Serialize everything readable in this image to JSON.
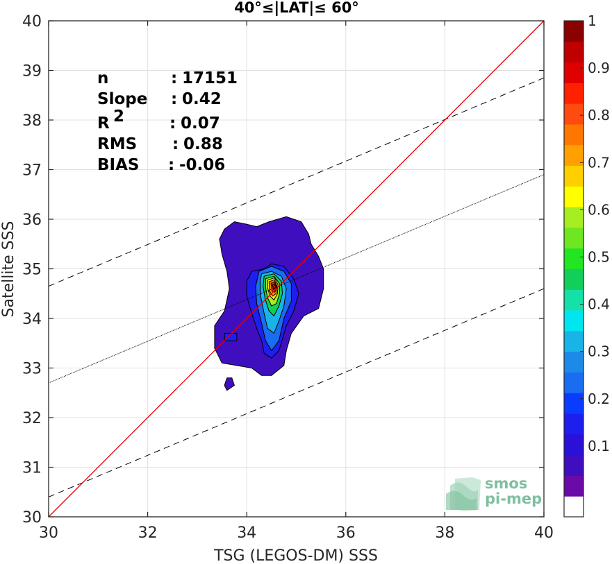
{
  "chart_data": {
    "type": "heatmap",
    "title": "40°≤|LAT|≤ 60°",
    "xlabel": "TSG (LEGOS-DM) SSS",
    "ylabel": "Satellite SSS",
    "xlim": [
      30,
      40
    ],
    "ylim": [
      30,
      40
    ],
    "xticks": [
      "30",
      "32",
      "34",
      "36",
      "38",
      "40"
    ],
    "yticks": [
      "30",
      "31",
      "32",
      "33",
      "34",
      "35",
      "36",
      "37",
      "38",
      "39",
      "40"
    ],
    "grid": true,
    "stats": [
      {
        "label": "n",
        "sep": ": ",
        "value": "17151"
      },
      {
        "label": "Slope",
        "sep": ": ",
        "value": "0.42"
      },
      {
        "label": "R",
        "sup": "2",
        "sep": ": ",
        "value": "0.07"
      },
      {
        "label": "RMS",
        "sep": ": ",
        "value": "0.88"
      },
      {
        "label": "BIAS",
        "sep": ": ",
        "value": "-0.06"
      }
    ],
    "lines": {
      "one_to_one": {
        "x": [
          30,
          40
        ],
        "y": [
          30,
          40
        ],
        "color": "#e00000"
      },
      "regression": {
        "slope": 0.42,
        "intercept": 20.1,
        "color": "#000000"
      },
      "upper_bound": {
        "slope": 0.42,
        "intercept": 22.05,
        "style": "dashed",
        "color": "#000000"
      },
      "lower_bound": {
        "slope": 0.42,
        "intercept": 17.8,
        "style": "dashed",
        "color": "#000000"
      }
    },
    "density_contours": [
      {
        "level": 0.05,
        "color": "#3f0fbf",
        "points": [
          [
            33.55,
            35.8
          ],
          [
            33.75,
            35.95
          ],
          [
            34.0,
            35.9
          ],
          [
            34.2,
            35.85
          ],
          [
            34.45,
            35.95
          ],
          [
            34.8,
            36.05
          ],
          [
            35.1,
            35.95
          ],
          [
            35.25,
            35.7
          ],
          [
            35.3,
            35.5
          ],
          [
            35.45,
            35.25
          ],
          [
            35.55,
            35.0
          ],
          [
            35.55,
            34.6
          ],
          [
            35.45,
            34.2
          ],
          [
            35.15,
            34.05
          ],
          [
            34.9,
            33.7
          ],
          [
            34.8,
            33.35
          ],
          [
            34.75,
            33.05
          ],
          [
            34.5,
            32.85
          ],
          [
            34.3,
            32.85
          ],
          [
            34.1,
            33.0
          ],
          [
            33.8,
            33.05
          ],
          [
            33.5,
            33.1
          ],
          [
            33.35,
            33.4
          ],
          [
            33.35,
            33.85
          ],
          [
            33.55,
            34.15
          ],
          [
            33.65,
            34.6
          ],
          [
            33.6,
            34.95
          ],
          [
            33.5,
            35.3
          ],
          [
            33.45,
            35.6
          ]
        ]
      },
      {
        "level": 0.05,
        "color": "#3f0fbf",
        "points": [
          [
            33.6,
            32.55
          ],
          [
            33.75,
            32.65
          ],
          [
            33.7,
            32.8
          ],
          [
            33.6,
            32.8
          ],
          [
            33.55,
            32.65
          ]
        ]
      },
      {
        "level": 0.15,
        "color": "#1e1eee",
        "points": [
          [
            34.1,
            34.95
          ],
          [
            34.35,
            35.0
          ],
          [
            34.5,
            35.1
          ],
          [
            34.75,
            35.05
          ],
          [
            34.95,
            34.8
          ],
          [
            35.05,
            34.5
          ],
          [
            34.95,
            34.15
          ],
          [
            34.8,
            33.85
          ],
          [
            34.65,
            33.35
          ],
          [
            34.5,
            33.2
          ],
          [
            34.35,
            33.3
          ],
          [
            34.3,
            33.55
          ],
          [
            34.2,
            33.8
          ],
          [
            34.1,
            34.1
          ],
          [
            34.0,
            34.45
          ],
          [
            34.0,
            34.75
          ]
        ]
      },
      {
        "level": 0.15,
        "color": "#1e1eee",
        "points": [
          [
            33.55,
            33.55
          ],
          [
            33.8,
            33.55
          ],
          [
            33.8,
            33.7
          ],
          [
            33.55,
            33.7
          ]
        ]
      },
      {
        "level": 0.25,
        "color": "#1a6cf0",
        "points": [
          [
            34.25,
            34.95
          ],
          [
            34.5,
            35.05
          ],
          [
            34.75,
            34.95
          ],
          [
            34.9,
            34.7
          ],
          [
            34.9,
            34.35
          ],
          [
            34.75,
            34.0
          ],
          [
            34.65,
            33.55
          ],
          [
            34.5,
            33.35
          ],
          [
            34.38,
            33.55
          ],
          [
            34.3,
            33.9
          ],
          [
            34.2,
            34.3
          ],
          [
            34.18,
            34.65
          ]
        ]
      },
      {
        "level": 0.35,
        "color": "#18b4e8",
        "points": [
          [
            34.3,
            34.9
          ],
          [
            34.5,
            34.95
          ],
          [
            34.7,
            34.85
          ],
          [
            34.8,
            34.6
          ],
          [
            34.75,
            34.25
          ],
          [
            34.65,
            33.95
          ],
          [
            34.55,
            33.7
          ],
          [
            34.42,
            33.8
          ],
          [
            34.35,
            34.1
          ],
          [
            34.28,
            34.45
          ],
          [
            34.27,
            34.75
          ]
        ]
      },
      {
        "level": 0.45,
        "color": "#12cf5a",
        "points": [
          [
            34.35,
            34.85
          ],
          [
            34.55,
            34.9
          ],
          [
            34.7,
            34.75
          ],
          [
            34.72,
            34.5
          ],
          [
            34.65,
            34.25
          ],
          [
            34.55,
            34.05
          ],
          [
            34.45,
            34.15
          ],
          [
            34.37,
            34.4
          ],
          [
            34.33,
            34.65
          ]
        ]
      },
      {
        "level": 0.55,
        "color": "#a6ee22",
        "points": [
          [
            34.38,
            34.8
          ],
          [
            34.55,
            34.85
          ],
          [
            34.66,
            34.7
          ],
          [
            34.66,
            34.5
          ],
          [
            34.6,
            34.3
          ],
          [
            34.5,
            34.25
          ],
          [
            34.42,
            34.42
          ],
          [
            34.38,
            34.62
          ]
        ]
      },
      {
        "level": 0.65,
        "color": "#ffe700",
        "points": [
          [
            34.42,
            34.77
          ],
          [
            34.56,
            34.82
          ],
          [
            34.63,
            34.68
          ],
          [
            34.62,
            34.5
          ],
          [
            34.55,
            34.37
          ],
          [
            34.47,
            34.45
          ],
          [
            34.42,
            34.62
          ]
        ]
      },
      {
        "level": 0.75,
        "color": "#ff8a00",
        "points": [
          [
            34.45,
            34.74
          ],
          [
            34.56,
            34.78
          ],
          [
            34.61,
            34.65
          ],
          [
            34.59,
            34.5
          ],
          [
            34.52,
            34.45
          ],
          [
            34.46,
            34.55
          ]
        ]
      },
      {
        "level": 0.85,
        "color": "#f22a0c",
        "points": [
          [
            34.49,
            34.71
          ],
          [
            34.56,
            34.74
          ],
          [
            34.6,
            34.64
          ],
          [
            34.57,
            34.53
          ],
          [
            34.51,
            34.55
          ]
        ]
      },
      {
        "level": 0.95,
        "color": "#c41010",
        "points": [
          [
            34.52,
            34.68
          ],
          [
            34.57,
            34.7
          ],
          [
            34.58,
            34.62
          ],
          [
            34.54,
            34.58
          ]
        ]
      }
    ],
    "colorbar": {
      "ticks": [
        "0.1",
        "0.2",
        "0.3",
        "0.4",
        "0.5",
        "0.6",
        "0.7",
        "0.8",
        "0.9",
        "1"
      ],
      "bands": [
        "#ffffff",
        "#6a0aa8",
        "#3f0fbf",
        "#2a10d9",
        "#1e1eee",
        "#0a3cff",
        "#1a6cf0",
        "#1b8ae8",
        "#18b4e8",
        "#00e6f0",
        "#14e0a8",
        "#12cf5a",
        "#22e622",
        "#6ee622",
        "#a6ee22",
        "#ffff00",
        "#ffd000",
        "#ffa000",
        "#ff7700",
        "#ff4a10",
        "#ff2000",
        "#e00000",
        "#c00000",
        "#8b0000"
      ]
    }
  },
  "logo": {
    "line1": "smos",
    "line2": "pi-mep"
  }
}
